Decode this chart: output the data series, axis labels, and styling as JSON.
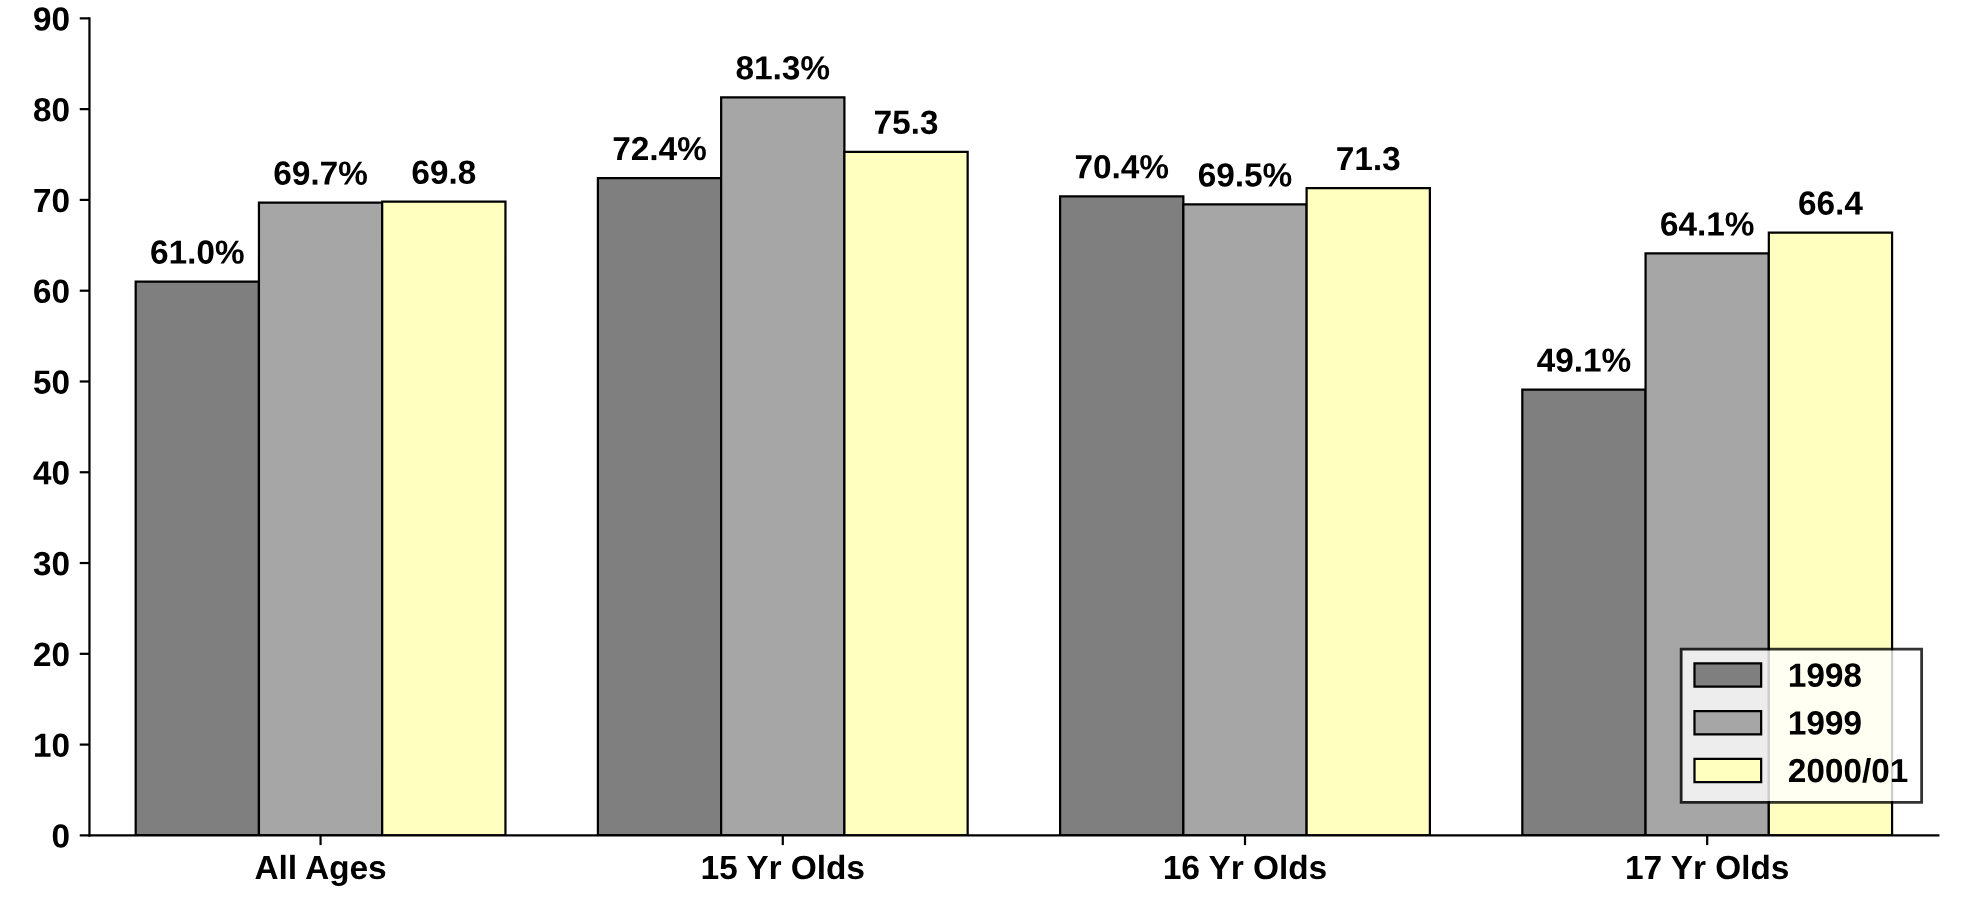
{
  "chart_data": {
    "type": "bar",
    "categories": [
      "All Ages",
      "15 Yr Olds",
      "16 Yr Olds",
      "17 Yr Olds"
    ],
    "series": [
      {
        "name": "1998",
        "color": "#7f7f7f",
        "values": [
          61.0,
          72.4,
          70.4,
          49.1
        ],
        "value_labels": [
          "61.0%",
          "72.4%",
          "70.4%",
          "49.1%"
        ]
      },
      {
        "name": "1999",
        "color": "#a6a6a6",
        "values": [
          69.7,
          81.3,
          69.5,
          64.1
        ],
        "value_labels": [
          "69.7%",
          "81.3%",
          "69.5%",
          "64.1%"
        ]
      },
      {
        "name": "2000/01",
        "color": "#ffffc0",
        "values": [
          69.8,
          75.3,
          71.3,
          66.4
        ],
        "value_labels": [
          "69.8",
          "75.3",
          "71.3",
          "66.4"
        ]
      }
    ],
    "ylim": [
      0,
      90
    ],
    "yticks": [
      0,
      10,
      20,
      30,
      40,
      50,
      60,
      70,
      80,
      90
    ],
    "grid": false,
    "legend": "bottom right"
  }
}
